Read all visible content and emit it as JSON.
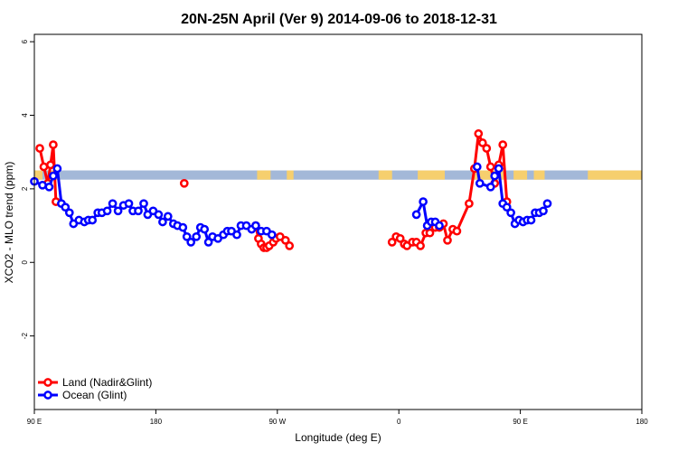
{
  "chart_data": {
    "type": "line",
    "title": "20N-25N April (Ver 9)   2014-09-06 to 2018-12-31",
    "xlabel": "Longitude (deg E)",
    "ylabel": "XCO2 - MLO trend (ppm)",
    "xlim": [
      90,
      450
    ],
    "ylim": [
      -4,
      6.2
    ],
    "x_ticks": [
      {
        "value": 90,
        "label": "90 E"
      },
      {
        "value": 180,
        "label": "180"
      },
      {
        "value": 270,
        "label": "90 W"
      },
      {
        "value": 360,
        "label": "0"
      },
      {
        "value": 450,
        "label": "90 E"
      },
      {
        "value": 540,
        "label": "180"
      }
    ],
    "y_ticks": [
      {
        "value": -2,
        "label": "-2"
      },
      {
        "value": 0,
        "label": "0"
      },
      {
        "value": 2,
        "label": "2"
      },
      {
        "value": 4,
        "label": "4"
      },
      {
        "value": 6,
        "label": "6"
      }
    ],
    "x_domain": [
      90,
      540
    ],
    "background_band": {
      "ymin": 2.25,
      "ymax": 2.5,
      "ocean_color": "#a3b8d8",
      "land_color": "#f6cf6e",
      "land_x_ranges": [
        [
          90,
          96
        ],
        [
          100,
          108
        ],
        [
          255,
          265
        ],
        [
          277,
          282
        ],
        [
          345,
          355
        ],
        [
          374,
          394
        ],
        [
          415,
          438
        ],
        [
          445,
          455
        ],
        [
          460,
          468
        ],
        [
          500,
          540
        ]
      ]
    },
    "series": [
      {
        "name": "Land (Nadir&Glint)",
        "color": "#ff0000",
        "points": [
          [
            94,
            3.1
          ],
          [
            97,
            2.6
          ],
          [
            100,
            2.15
          ],
          [
            102,
            2.65
          ],
          [
            104,
            3.2
          ],
          [
            106,
            1.65
          ],
          [
            201,
            2.15
          ],
          [
            254,
            1.0
          ],
          [
            256,
            0.65
          ],
          [
            258,
            0.5
          ],
          [
            260,
            0.4
          ],
          [
            262,
            0.4
          ],
          [
            264,
            0.45
          ],
          [
            267,
            0.55
          ],
          [
            269,
            0.65
          ],
          [
            272,
            0.7
          ],
          [
            276,
            0.6
          ],
          [
            279,
            0.45
          ],
          [
            355,
            0.55
          ],
          [
            358,
            0.7
          ],
          [
            361,
            0.65
          ],
          [
            364,
            0.5
          ],
          [
            366,
            0.45
          ],
          [
            370,
            0.55
          ],
          [
            373,
            0.55
          ],
          [
            376,
            0.45
          ],
          [
            380,
            0.8
          ],
          [
            383,
            0.8
          ],
          [
            387,
            0.95
          ],
          [
            390,
            0.95
          ],
          [
            393,
            1.05
          ],
          [
            396,
            0.6
          ],
          [
            400,
            0.9
          ],
          [
            403,
            0.85
          ],
          [
            412,
            1.6
          ],
          [
            416,
            2.55
          ],
          [
            419,
            3.5
          ],
          [
            422,
            3.25
          ],
          [
            425,
            3.1
          ],
          [
            428,
            2.6
          ],
          [
            431,
            2.15
          ],
          [
            434,
            2.65
          ],
          [
            437,
            3.2
          ],
          [
            440,
            1.65
          ]
        ]
      },
      {
        "name": "Ocean (Glint)",
        "color": "#0000ff",
        "points": [
          [
            90,
            2.2
          ],
          [
            96,
            2.1
          ],
          [
            101,
            2.05
          ],
          [
            104,
            2.35
          ],
          [
            107,
            2.55
          ],
          [
            110,
            1.6
          ],
          [
            113,
            1.5
          ],
          [
            116,
            1.35
          ],
          [
            119,
            1.05
          ],
          [
            123,
            1.15
          ],
          [
            127,
            1.1
          ],
          [
            130,
            1.15
          ],
          [
            133,
            1.15
          ],
          [
            137,
            1.35
          ],
          [
            140,
            1.35
          ],
          [
            144,
            1.4
          ],
          [
            148,
            1.6
          ],
          [
            152,
            1.4
          ],
          [
            156,
            1.55
          ],
          [
            160,
            1.6
          ],
          [
            163,
            1.4
          ],
          [
            167,
            1.4
          ],
          [
            171,
            1.6
          ],
          [
            174,
            1.3
          ],
          [
            178,
            1.4
          ],
          [
            182,
            1.3
          ],
          [
            185,
            1.1
          ],
          [
            189,
            1.25
          ],
          [
            193,
            1.05
          ],
          [
            196,
            1.0
          ],
          [
            200,
            0.95
          ],
          [
            203,
            0.7
          ],
          [
            206,
            0.55
          ],
          [
            210,
            0.7
          ],
          [
            213,
            0.95
          ],
          [
            216,
            0.9
          ],
          [
            219,
            0.55
          ],
          [
            222,
            0.7
          ],
          [
            226,
            0.65
          ],
          [
            230,
            0.75
          ],
          [
            233,
            0.85
          ],
          [
            236,
            0.85
          ],
          [
            240,
            0.75
          ],
          [
            243,
            1.0
          ],
          [
            247,
            1.0
          ],
          [
            251,
            0.9
          ],
          [
            254,
            1.0
          ],
          [
            258,
            0.85
          ],
          [
            262,
            0.85
          ],
          [
            266,
            0.75
          ],
          [
            373,
            1.3
          ],
          [
            378,
            1.65
          ],
          [
            381,
            1.0
          ],
          [
            384,
            1.1
          ],
          [
            387,
            1.1
          ],
          [
            390,
            1.0
          ],
          [
            418,
            2.6
          ],
          [
            420,
            2.15
          ],
          [
            428,
            2.05
          ],
          [
            431,
            2.35
          ],
          [
            434,
            2.55
          ],
          [
            437,
            1.6
          ],
          [
            440,
            1.5
          ],
          [
            443,
            1.35
          ],
          [
            446,
            1.05
          ],
          [
            449,
            1.15
          ],
          [
            452,
            1.1
          ],
          [
            455,
            1.15
          ],
          [
            458,
            1.15
          ],
          [
            461,
            1.35
          ],
          [
            464,
            1.35
          ],
          [
            467,
            1.4
          ],
          [
            470,
            1.6
          ]
        ]
      }
    ],
    "legend": {
      "placement": "bottom-left",
      "entries": [
        "Land (Nadir&Glint)",
        "Ocean (Glint)"
      ]
    }
  }
}
